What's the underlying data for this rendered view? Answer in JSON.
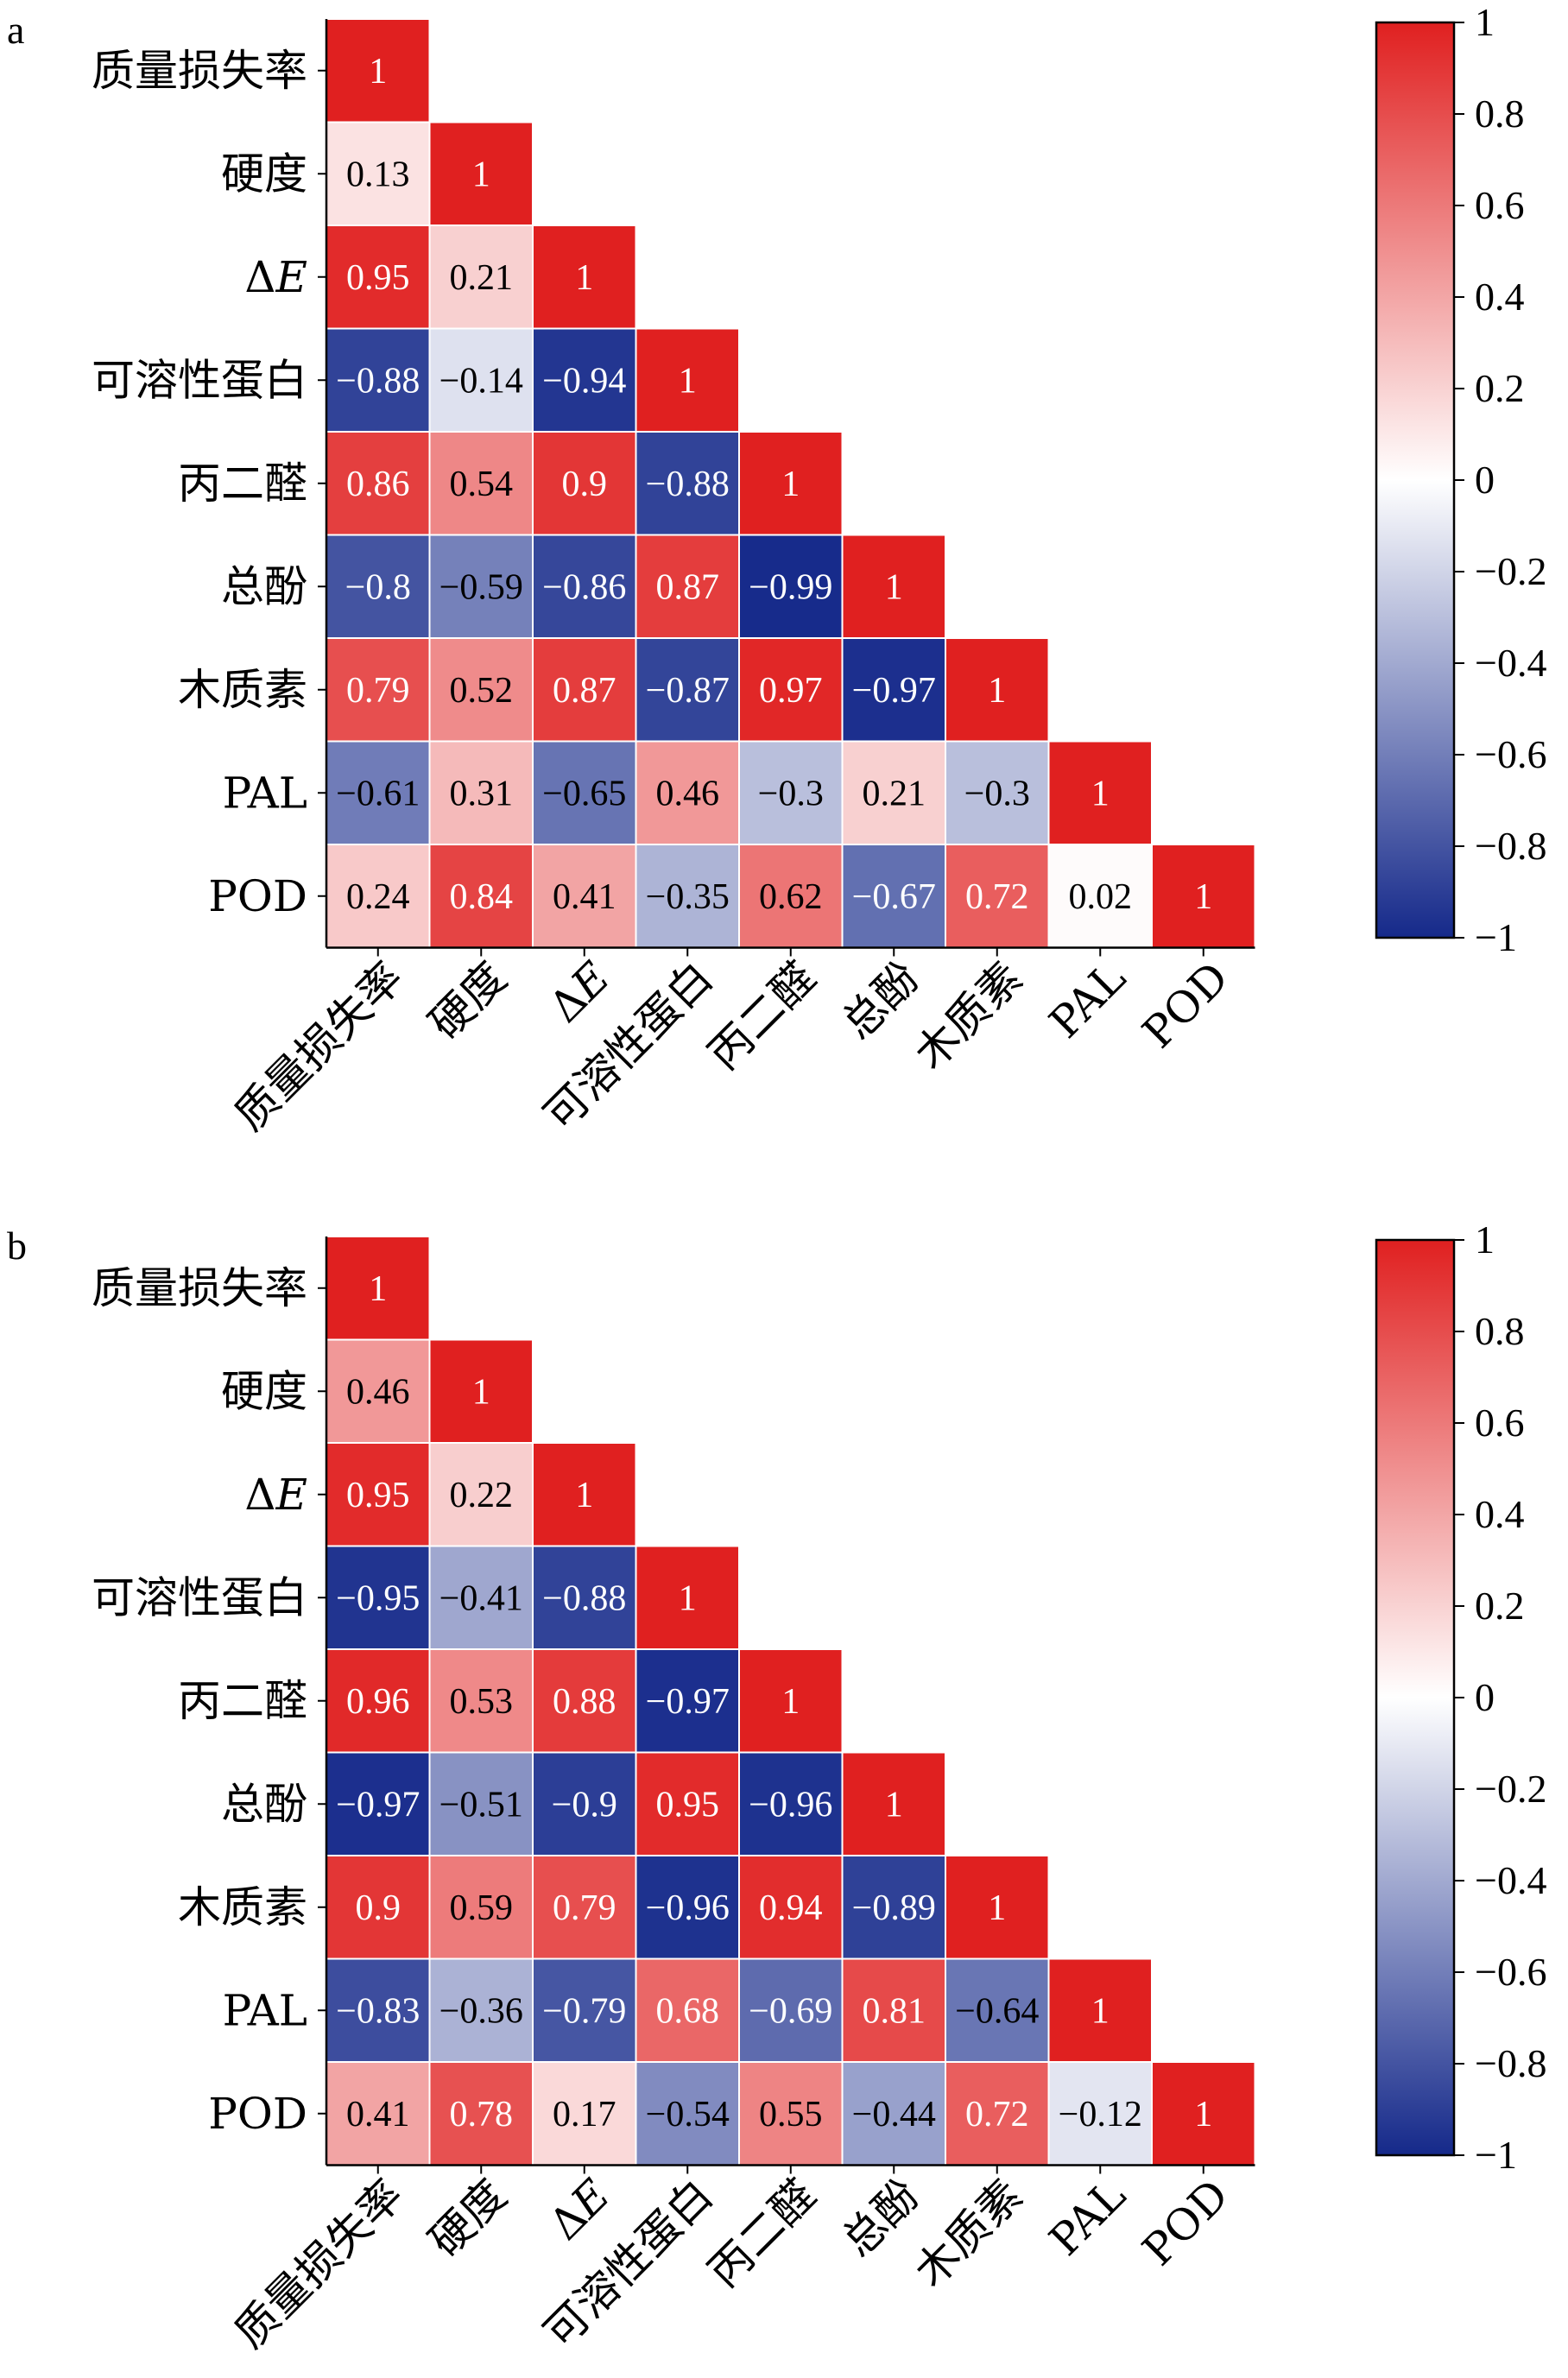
{
  "colors": {
    "positive": "#e02020",
    "neutral": "#ffffff",
    "negative": "#15298a",
    "grid": "#ffffff",
    "axis": "#000000",
    "text_dark": "#000000",
    "text_light": "#ffffff"
  },
  "chart_data": [
    {
      "type": "heatmap",
      "panel_label": "a",
      "variables": [
        "质量损失率",
        "硬度",
        "ΔE",
        "可溶性蛋白",
        "丙二醛",
        "总酚",
        "木质素",
        "PAL",
        "POD"
      ],
      "matrix": [
        [
          1
        ],
        [
          0.13,
          1
        ],
        [
          0.95,
          0.21,
          1
        ],
        [
          -0.88,
          -0.14,
          -0.94,
          1
        ],
        [
          0.86,
          0.54,
          0.9,
          -0.88,
          1
        ],
        [
          -0.8,
          -0.59,
          -0.86,
          0.87,
          -0.99,
          1
        ],
        [
          0.79,
          0.52,
          0.87,
          -0.87,
          0.97,
          -0.97,
          1
        ],
        [
          -0.61,
          0.31,
          -0.65,
          0.46,
          -0.3,
          0.21,
          -0.3,
          1
        ],
        [
          0.24,
          0.84,
          0.41,
          -0.35,
          0.62,
          -0.67,
          0.72,
          0.02,
          1
        ]
      ],
      "colorbar": {
        "range": [
          -1,
          1
        ],
        "ticks": [
          "1",
          "0.8",
          "0.6",
          "0.4",
          "0.2",
          "0",
          "−0.2",
          "−0.4",
          "−0.6",
          "−0.8",
          "−1"
        ]
      }
    },
    {
      "type": "heatmap",
      "panel_label": "b",
      "variables": [
        "质量损失率",
        "硬度",
        "ΔE",
        "可溶性蛋白",
        "丙二醛",
        "总酚",
        "木质素",
        "PAL",
        "POD"
      ],
      "matrix": [
        [
          1
        ],
        [
          0.46,
          1
        ],
        [
          0.95,
          0.22,
          1
        ],
        [
          -0.95,
          -0.41,
          -0.88,
          1
        ],
        [
          0.96,
          0.53,
          0.88,
          -0.97,
          1
        ],
        [
          -0.97,
          -0.51,
          -0.9,
          0.95,
          -0.96,
          1
        ],
        [
          0.9,
          0.59,
          0.79,
          -0.96,
          0.94,
          -0.89,
          1
        ],
        [
          -0.83,
          -0.36,
          -0.79,
          0.68,
          -0.69,
          0.81,
          -0.64,
          1
        ],
        [
          0.41,
          0.78,
          0.17,
          -0.54,
          0.55,
          -0.44,
          0.72,
          -0.12,
          1
        ]
      ],
      "colorbar": {
        "range": [
          -1,
          1
        ],
        "ticks": [
          "1",
          "0.8",
          "0.6",
          "0.4",
          "0.2",
          "0",
          "−0.2",
          "−0.4",
          "−0.6",
          "−0.8",
          "−1"
        ]
      }
    }
  ]
}
